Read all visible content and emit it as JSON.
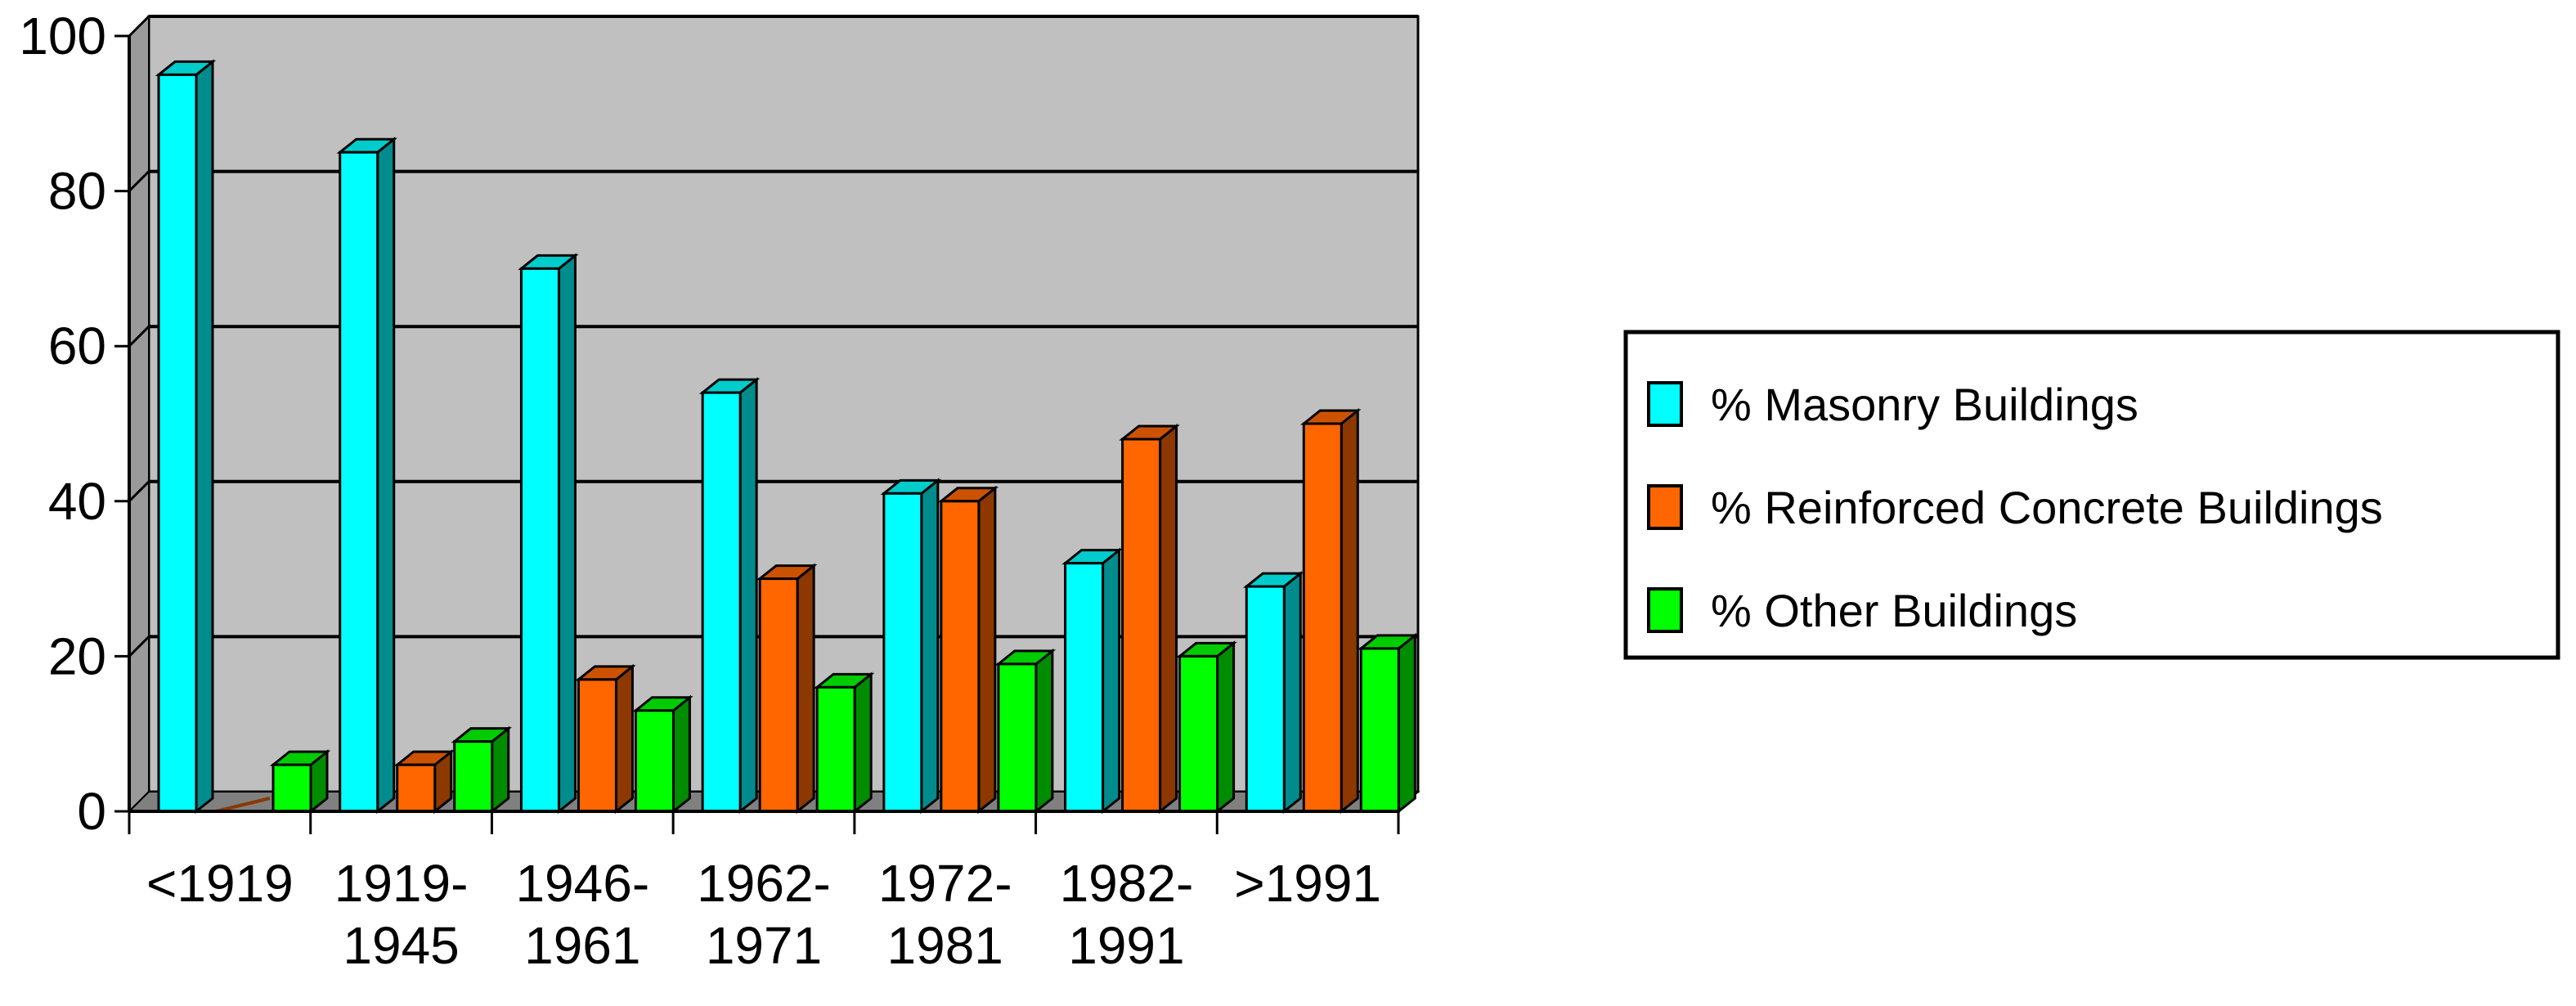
{
  "chart_data": {
    "type": "bar",
    "title": "",
    "xlabel": "",
    "ylabel": "",
    "ylim": [
      0,
      100
    ],
    "yticks": [
      0,
      20,
      40,
      60,
      80,
      100
    ],
    "grid": true,
    "legend_position": "right",
    "categories": [
      [
        "<1919"
      ],
      [
        "1919-",
        "1945"
      ],
      [
        "1946-",
        "1961"
      ],
      [
        "1962-",
        "1971"
      ],
      [
        "1972-",
        "1981"
      ],
      [
        "1982-",
        "1991"
      ],
      [
        ">1991"
      ]
    ],
    "series": [
      {
        "name": "%  Masonry Buildings",
        "color": "#00FFFF",
        "values": [
          95,
          85,
          70,
          54,
          41,
          32,
          29
        ]
      },
      {
        "name": "%  Reinforced Concrete Buildings",
        "color": "#FF6600",
        "values": [
          0,
          6,
          17,
          30,
          40,
          48,
          50
        ]
      },
      {
        "name": "%  Other Buildings",
        "color": "#00FF00",
        "values": [
          6,
          9,
          13,
          16,
          19,
          20,
          21
        ]
      }
    ],
    "plot_background": "#C0C0C0"
  }
}
